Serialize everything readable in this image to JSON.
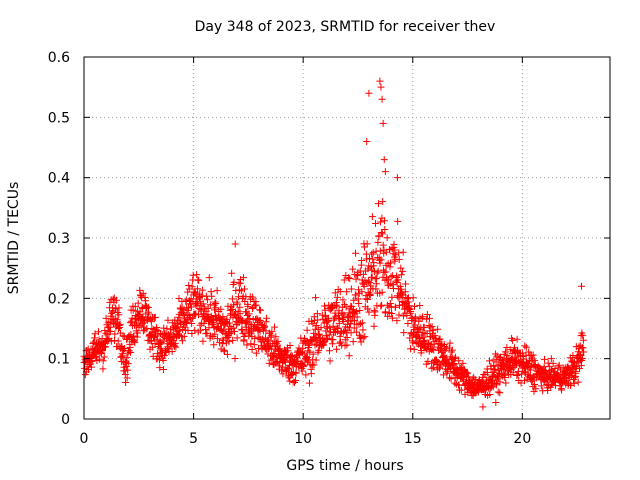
{
  "chart_data": {
    "type": "scatter",
    "title": "Day 348 of 2023, SRMTID for receiver thev",
    "xlabel": "GPS time / hours",
    "ylabel": "SRMTID / TECUs",
    "xlim": [
      0,
      24
    ],
    "ylim": [
      0,
      0.6
    ],
    "x_ticks": [
      0,
      5,
      10,
      15,
      20
    ],
    "x_tick_labels": [
      "0",
      "5",
      "10",
      "15",
      "20"
    ],
    "y_ticks": [
      0,
      0.1,
      0.2,
      0.3,
      0.4,
      0.5,
      0.6
    ],
    "y_tick_labels": [
      "0",
      "0.1",
      "0.2",
      "0.3",
      "0.4",
      "0.5",
      "0.6"
    ],
    "grid": true,
    "marker": "plus",
    "marker_color": "#ff0000",
    "series": [
      {
        "name": "SRMTID",
        "profile_note": "approximate envelope of the dense point cloud (x in hours, y in TECU)",
        "profile_x": [
          0,
          0.5,
          1.0,
          1.3,
          1.6,
          1.9,
          2.2,
          2.6,
          3.0,
          3.5,
          4.0,
          4.5,
          5.0,
          5.5,
          6.0,
          6.5,
          7.0,
          7.5,
          8.0,
          8.5,
          9.0,
          9.5,
          10.0,
          10.5,
          11.0,
          11.5,
          12.0,
          12.5,
          13.0,
          13.5,
          13.8,
          14.2,
          14.6,
          15.0,
          15.5,
          16.0,
          16.5,
          17.0,
          17.5,
          18.0,
          18.3,
          18.7,
          19.0,
          19.5,
          20.0,
          20.5,
          21.0,
          21.5,
          22.0,
          22.5,
          22.8
        ],
        "profile_mean": [
          0.09,
          0.11,
          0.13,
          0.17,
          0.16,
          0.09,
          0.15,
          0.19,
          0.15,
          0.12,
          0.13,
          0.16,
          0.19,
          0.18,
          0.16,
          0.14,
          0.19,
          0.17,
          0.15,
          0.12,
          0.1,
          0.09,
          0.1,
          0.13,
          0.15,
          0.16,
          0.18,
          0.2,
          0.22,
          0.26,
          0.25,
          0.24,
          0.2,
          0.15,
          0.14,
          0.12,
          0.1,
          0.08,
          0.06,
          0.05,
          0.06,
          0.07,
          0.08,
          0.1,
          0.09,
          0.08,
          0.07,
          0.07,
          0.07,
          0.09,
          0.12
        ],
        "profile_spread": [
          0.02,
          0.03,
          0.04,
          0.04,
          0.04,
          0.03,
          0.04,
          0.04,
          0.04,
          0.03,
          0.04,
          0.04,
          0.05,
          0.04,
          0.05,
          0.05,
          0.06,
          0.05,
          0.04,
          0.04,
          0.03,
          0.03,
          0.04,
          0.05,
          0.05,
          0.06,
          0.07,
          0.08,
          0.09,
          0.1,
          0.09,
          0.08,
          0.06,
          0.05,
          0.04,
          0.04,
          0.03,
          0.03,
          0.02,
          0.02,
          0.02,
          0.03,
          0.03,
          0.03,
          0.03,
          0.03,
          0.02,
          0.02,
          0.02,
          0.03,
          0.05
        ],
        "peak_points": [
          {
            "x": 12.9,
            "y": 0.46
          },
          {
            "x": 13.0,
            "y": 0.54
          },
          {
            "x": 13.5,
            "y": 0.56
          },
          {
            "x": 13.55,
            "y": 0.55
          },
          {
            "x": 13.6,
            "y": 0.53
          },
          {
            "x": 13.65,
            "y": 0.49
          },
          {
            "x": 13.7,
            "y": 0.43
          },
          {
            "x": 13.75,
            "y": 0.41
          },
          {
            "x": 14.3,
            "y": 0.4
          },
          {
            "x": 6.9,
            "y": 0.29
          },
          {
            "x": 22.7,
            "y": 0.22
          },
          {
            "x": 18.2,
            "y": 0.02
          }
        ]
      }
    ]
  }
}
